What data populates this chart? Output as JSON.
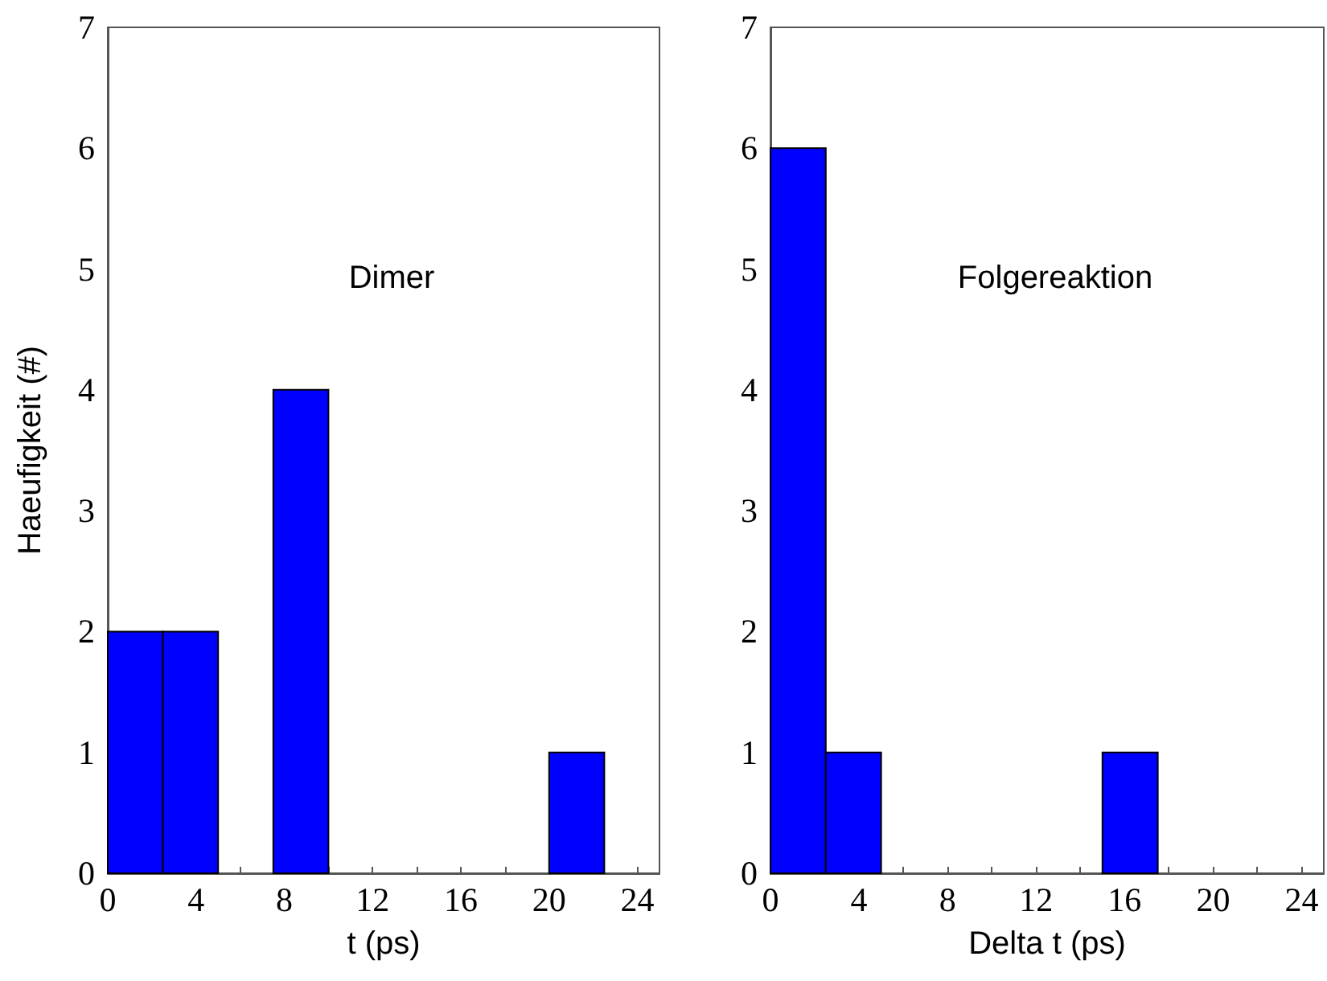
{
  "chart_data": [
    {
      "type": "histogram",
      "title": "Dimer",
      "xlabel": "t (ps)",
      "ylabel": "Haeufigkeit (#)",
      "bins": [
        0,
        2.5,
        5,
        7.5,
        10,
        12.5,
        15,
        17.5,
        20,
        22.5,
        25
      ],
      "values": [
        2,
        2,
        0,
        4,
        0,
        0,
        0,
        0,
        1,
        0
      ],
      "color": "#0000ff",
      "xlim": [
        0,
        25
      ],
      "xticks": [
        0,
        {
          "value": 2,
          "label": null
        },
        4,
        {
          "value": 6,
          "label": null
        },
        8,
        {
          "value": 10,
          "label": null
        },
        12,
        {
          "value": 14,
          "label": null
        },
        16,
        {
          "value": 18,
          "label": null
        },
        20,
        {
          "value": 22,
          "label": null
        },
        24
      ],
      "ylim": [
        0,
        7
      ],
      "yticks": [
        0,
        1,
        2,
        3,
        4,
        5,
        6,
        7
      ],
      "grid": false
    },
    {
      "type": "histogram",
      "title": "Folgereaktion",
      "xlabel": "Delta t (ps)",
      "bins": [
        0,
        2.5,
        5,
        7.5,
        10,
        12.5,
        15,
        17.5,
        20,
        22.5,
        25
      ],
      "values": [
        6,
        1,
        0,
        0,
        0,
        0,
        1,
        0,
        0,
        0
      ],
      "color": "#0000ff",
      "xlim": [
        0,
        25
      ],
      "xticks": [
        0,
        {
          "value": 2,
          "label": null
        },
        4,
        {
          "value": 6,
          "label": null
        },
        8,
        {
          "value": 10,
          "label": null
        },
        12,
        {
          "value": 14,
          "label": null
        },
        16,
        {
          "value": 18,
          "label": null
        },
        20,
        {
          "value": 22,
          "label": null
        },
        24
      ],
      "ylim": [
        0,
        7
      ],
      "yticks": [
        0,
        1,
        2,
        3,
        4,
        5,
        6,
        7
      ],
      "grid": false
    }
  ]
}
